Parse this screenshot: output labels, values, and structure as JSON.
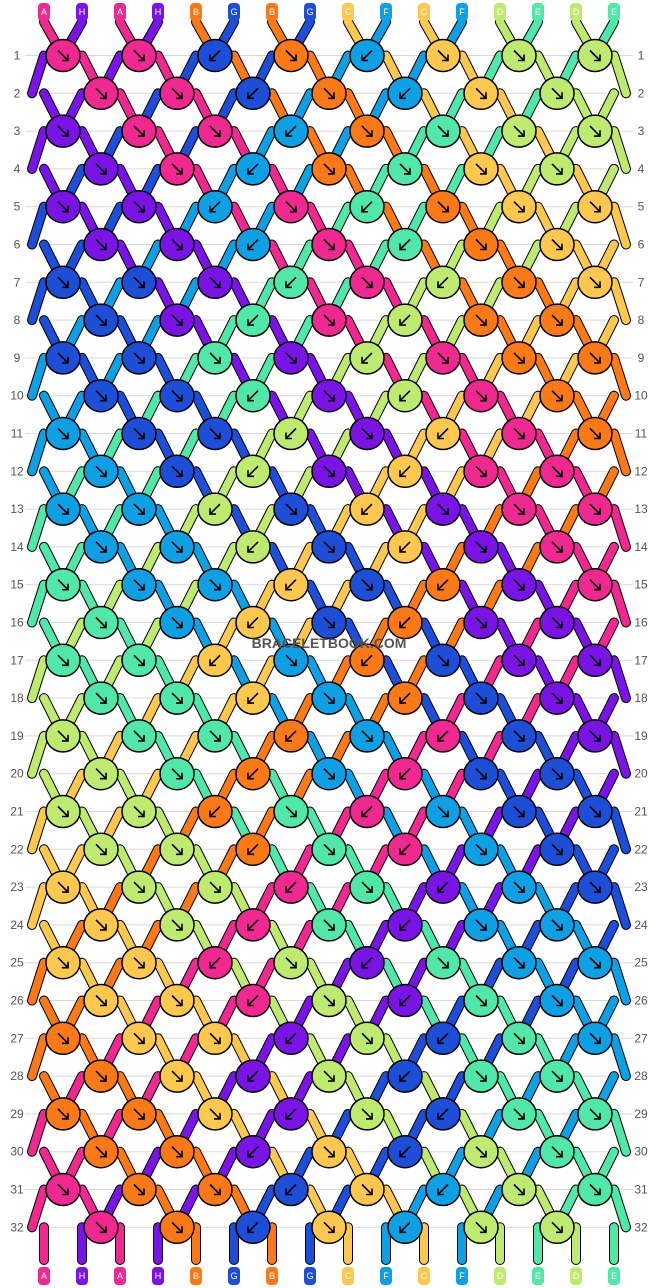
{
  "strand_colors": {
    "A": "#f0288f",
    "H": "#7a14e6",
    "B": "#fd7916",
    "G": "#1d4ed8",
    "C": "#fdc84d",
    "F": "#0ea0e4",
    "D": "#bfea70",
    "E": "#4fe8a8"
  },
  "top_labels": [
    "A",
    "H",
    "A",
    "H",
    "B",
    "G",
    "B",
    "G",
    "C",
    "F",
    "C",
    "F",
    "D",
    "E",
    "D",
    "E"
  ],
  "bottom_labels": [
    "A",
    "H",
    "A",
    "H",
    "B",
    "G",
    "B",
    "G",
    "C",
    "F",
    "C",
    "F",
    "D",
    "E",
    "D",
    "E"
  ],
  "row_numbers": [
    "1",
    "2",
    "3",
    "4",
    "5",
    "6",
    "7",
    "8",
    "9",
    "10",
    "11",
    "12",
    "13",
    "14",
    "15",
    "16",
    "17",
    "18",
    "19",
    "20",
    "21",
    "22",
    "23",
    "24",
    "25",
    "26",
    "27",
    "28",
    "29",
    "30",
    "31",
    "32"
  ],
  "knot_rows": [
    "AR AR GL BR FL CR DR DR",
    "AR AR GL BR FL CR DR",
    "HR AR AR FL BR ER DR DR",
    "HR AR FL BR ER CR DR",
    "HR HR FL AR EL BR CR CR",
    "HR HR FL AR EL BR CR",
    "GR GR HR EL AR DL BR CR",
    "GR HR EL AR DL BR BR",
    "GR GR ER HR DL AR BR BR",
    "GR GR EL HR DL AR BR",
    "FR GR GR DL HR CL AR BR",
    "FR GR DL HR CL AR AR",
    "FR FR DL GR CL HR AR AR",
    "FR FR DL GR CL HR AR",
    "ER FR FR CL GR BL HR AR",
    "ER FR CL GR BL HR HR",
    "ER ER CL FR BL GR HR HR",
    "ER ER CL FR BL GR HR",
    "DR ER ER BL FR AL GR HR",
    "DR ER BL FR AL GR GR",
    "DR DR BL ER AL FR GR GR",
    "DR DR BL ER AL FR GR",
    "CR DR DR AL ER HL FR GR",
    "CR DR AL ER HL FR FR",
    "CR CR AL DR HL ER FR FR",
    "CR CR AL DR HL ER FR",
    "BR CR CR HL DR GL ER FR",
    "BR CR HL DR GL ER ER",
    "BR BR CR HL DR GL ER ER",
    "BR BR HL CR GL DR ER",
    "AR BR BR GL CR FL DR ER",
    "AR BR GL CR FL DR DR"
  ],
  "watermark": "BRACELETBOOK.COM"
}
